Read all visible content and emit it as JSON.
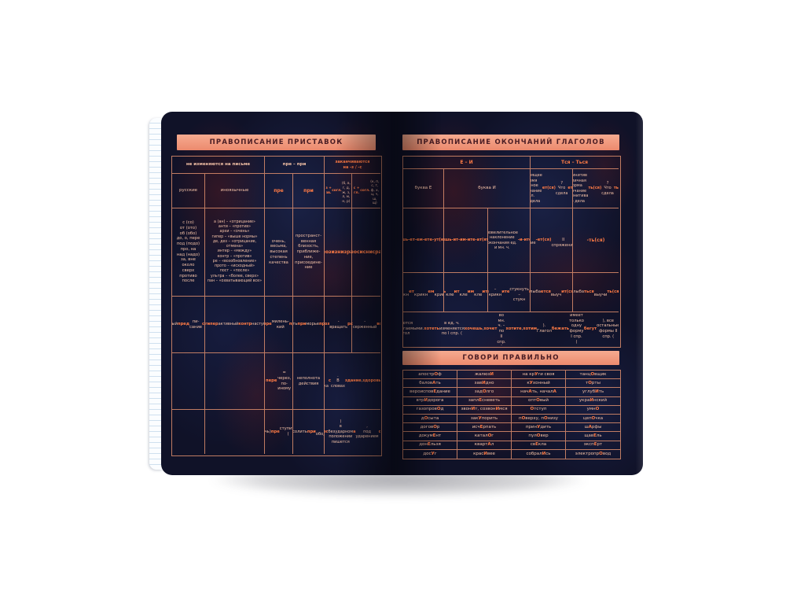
{
  "colors": {
    "banner": "#f09a7f",
    "banner_text": "#4a1d24",
    "grid_line": "#e8946e",
    "text": "#f3c1a6",
    "highlight": "#ff7b45",
    "page": "#101228",
    "background": "#ffffff"
  },
  "left_page": {
    "title": "ПРАВОПИСАНИЕ ПРИСТАВОК",
    "group_headers": [
      "не изменяются на письме",
      "пре – при",
      "заканчиваются\nна -з / -с"
    ],
    "column_headers": [
      "русские",
      "иноязычные",
      "**пре**",
      "**при**",
      "**з + зв.**\n**согл.**\n(б, в, г, д,\nж, з, л, м,\nн, р)",
      "**с + гл.**\n**согл.**\n(к, п, с, т,\nф, х, ц, ч,\nш, щ)"
    ],
    "rows": [
      [
        "с (со)\nот (ото)\nоб (обо)\nдо, о, пере\nпод (подо)\nпро, на\nнад (надо)\nза, вне\nоколо\nсверх\nпротиво\nпосле",
        "а (ан) – «отрицание»\nанти – «против»\nархи – «очень»\nгипер – «выше нормы»\nде, дез – «отрицание,\nотмена»\nинтер – «между»\nконтр – «против»\nре – «возобновление»\nпрото – «исходный»\nпост – «после»\nультра – «более, сверх»\nпан – «охватывающий все»",
        "очень,\nвесьма,\nвысокая\nстепень\nкачества",
        "пространст-\nвенная\nблизость,\nприближе-\nние,\nприсоедине-\nние",
        "**без**\n**вз**\n**воз**\n**из**\n**низ**\n**раз**\n**чрез**",
        "**бес**\n**вс**\n**вос**\n**ис**\n**нис**\n**рас**\n**чрес**"
      ],
      [
        "**о**круглый\n**пред**пи-\nсание\n**с**дирать",
        "**анти**военный\n**архи**сложный\n**гипер**активный\n**контр**наступление\n**ультра**современный",
        "**пре**отлич-\nный\n**пре**милень-\nкий\n**пре**увеличе-\nние",
        "**при**двинуть\n**при**морье\n**при**кладной",
        "**без**мерный\n**низ**вер-\nгнуть\n**воз**-\nвращать\n**раз**-\nмножать\n**чрез**мерно",
        "**вс**плеск\n**нис**падать\n**рас**-\nсерженный\n**вос**хище-\nние\n**чрес**-\nполосица"
      ],
      [
        "",
        "",
        "**пере** =\nчерез,\nпо-иному",
        "неполнота\nдействия",
        "В русском языке нет\nприставки **э**,\nесть приставка **с**.\nВ словах **здание**,\n**здоровье**,\n**здесь** начальная буква\nне является приставкой"
      ],
      [
        "",
        "",
        "**пре**сечь\n(**пере**сечь)\n**пре**ступить\n(**пере**-\nступить)",
        "**при**-\nтормозить\n**при**солить\n**при**-\nободрить\n**при**украсить",
        "В приставке **раз** (**рас**) –\n**роз** (**рос**)\nв безударном положении\nпишется **а**,\nпод ударением **о**.\n**Исключение:**\nрозыскной"
      ]
    ]
  },
  "right_page": {
    "title": "ПРАВОПИСАНИЕ ОКОНЧАНИЙ ГЛАГОЛОВ",
    "group_headers": [
      "Е – И",
      "Тся – Ться"
    ],
    "column_headers": [
      "буква Е",
      "буква И",
      "настоящее\nвремя\nличное\nокончание 3 л.\nЧто дела**ет(ся)**?\nЧто сдела**ет(ся)**?",
      "инфинитив\nбезличная форма\nокончание\nинфинитива\nЧто дела**ть(ся)**?\nЧто сдела**ть(ся)**?"
    ],
    "rows": [
      [
        "настоящее\nвремя\nличные\nокончания\nI спряжения\n**-ешь**\n**-ет**\n**-ем**\n**-ете**\n**-ут(ют)** –\nпоказатель I спр",
        "настоящее время\nличные окончания\nII спряжения\n**-ишь**\n**-ит**\n**-им**\n**-ите**\n**-ат(ят)** –\nпоказатель II спр.",
        "повелительное\nнаклонение\nокончания ед.\nи мн. ч.\n**-и**\n**-ите**",
        "I спряжение\n**-ет(ся)**\nII спряжение\n**-ит(ся)**",
        "**-ть(ся)**"
      ],
      [
        "крикн**ешь**\nкрикн**ет**\nкрикн**ем**\nкрикн**ете**\nкрикн**ут**",
        "кле**ишь**\nкле**ит**\nкле**им**\nкле**ите**\nкле**ят**",
        "крикнуть –\nкрикн**и** –\nкрикн**ите**\nстукнуть –\nстукн**и** –\nстукн**ите**",
        "улыба**ется**\nвыуч**ит(ся)**",
        "улыба**ться**\nвыучи**ть(ся)**"
      ]
    ],
    "note": "Глаголы **хотеть**, **бежать** являются разноспрягаемыми.\nГлагол **хотеть** в ед. ч. изменяется по I спр. (**хочешь**, **хочет**),\nво мн. ч. – по II спр. (**хотите**, **хотим**). Глагол **бежать** имеет только одну форму I спр.\n(**бегут**), все остальные формы II спр. (**бежишь**, **бежит**, **бежим**, **бежите**)"
  },
  "speak_correctly": {
    "title": "ГОВОРИ ПРАВИЛЬНО",
    "rows": [
      [
        "апостр**О**ф",
        "жалюз**И**",
        "на кр**У**ги своя",
        "танц**О**вщик"
      ],
      [
        "балов**А**ть",
        "зав**И**дно",
        "к**У**хонный",
        "т**О**рты"
      ],
      [
        "вероиспов**Е**дание",
        "зад**О**лго",
        "нач**А**ть, начал**А**",
        "углуб**И**ть"
      ],
      [
        "втр**И**дорога",
        "запл**Е**сневеть",
        "опт**О**вый",
        "укра**И**нский"
      ],
      [
        "газопров**О**д",
        "звон**И**т, созвон**И**мся",
        "**О**тступ",
        "умн**О**"
      ],
      [
        "д**О**сыта",
        "зак**У**порить",
        "п**О**верху, п**О**низу",
        "цеп**О**чка"
      ],
      [
        "догов**О**р",
        "исч**Е**рпать",
        "прин**У**дить",
        "ш**А**рфы"
      ],
      [
        "докум**Е**нт",
        "катал**О**г",
        "пул**О**вер",
        "щав**Е**ль"
      ],
      [
        "дон**Е**льзя",
        "кварт**А**л",
        "св**Е**кла",
        "эксп**Е**рт"
      ],
      [
        "дос**У**г",
        "крас**И**вее",
        "собрал**И**сь",
        "электропр**О**вод"
      ]
    ]
  }
}
